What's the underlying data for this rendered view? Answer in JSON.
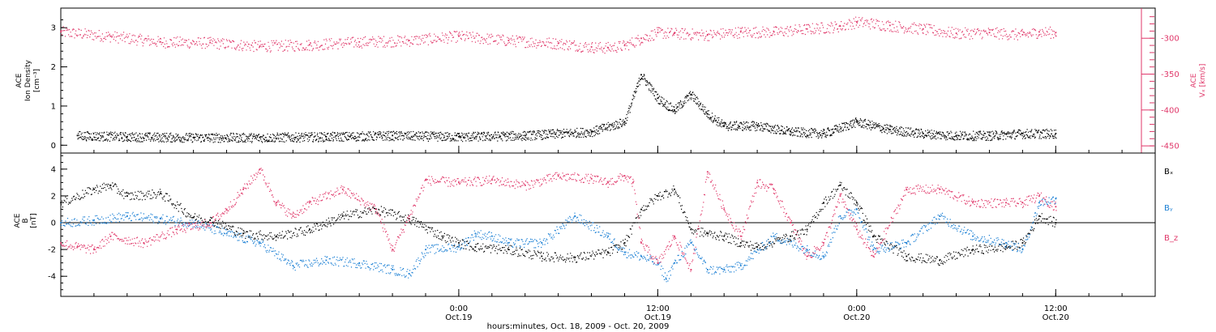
{
  "chart_data": [
    {
      "type": "scatter",
      "ylabel": "ACE Ion Density [cm⁻³]",
      "ylabel_lines": [
        "ACE",
        "Ion Density",
        "[cm⁻³]"
      ],
      "yticks": [
        "0",
        "1",
        "2",
        "3"
      ],
      "ylim": [
        -0.2,
        3.5
      ],
      "y2label": "ACE Vₓ [km/s]",
      "y2label_lines": [
        "ACE",
        "Vₓ [km/s]"
      ],
      "y2ticks": [
        "-300",
        "-350",
        "-400",
        "-450"
      ],
      "y2lim": [
        -460,
        -258
      ],
      "series": [
        {
          "color": "#000000",
          "axis": "left",
          "x": [
            -23,
            -20,
            -16,
            -12,
            -8,
            -4,
            0,
            4,
            8,
            10,
            11,
            12,
            13,
            14,
            15,
            16,
            18,
            20,
            22,
            24,
            26,
            28,
            30,
            32,
            34,
            36
          ],
          "y": [
            0.25,
            0.22,
            0.2,
            0.2,
            0.22,
            0.25,
            0.22,
            0.25,
            0.35,
            0.6,
            1.8,
            1.2,
            0.9,
            1.3,
            0.8,
            0.5,
            0.5,
            0.35,
            0.3,
            0.6,
            0.4,
            0.3,
            0.25,
            0.25,
            0.3,
            0.3
          ]
        },
        {
          "color": "#e0386a",
          "axis": "right",
          "x": [
            -24,
            -21,
            -18,
            -15,
            -12,
            -9,
            -6,
            -3,
            0,
            3,
            6,
            8,
            9,
            10,
            11,
            12,
            13,
            15,
            17,
            19,
            21,
            23,
            24,
            26,
            28,
            30,
            32,
            34,
            35,
            36
          ],
          "y": [
            -291,
            -297,
            -305,
            -306,
            -311,
            -309,
            -305,
            -303,
            -297,
            -303,
            -307,
            -312,
            -313,
            -310,
            -300,
            -292,
            -293,
            -295,
            -291,
            -291,
            -287,
            -283,
            -277,
            -282,
            -287,
            -293,
            -292,
            -295,
            -291,
            -292
          ]
        }
      ]
    },
    {
      "type": "scatter",
      "ylabel": "ACE B [nT]",
      "ylabel_lines": [
        "ACE",
        "B",
        "[nT]"
      ],
      "yticks": [
        "4",
        "2",
        "0",
        "-2",
        "-4"
      ],
      "ylim": [
        -5.5,
        5.2
      ],
      "xlabel": "hours:minutes, Oct. 18, 2009 - Oct. 20, 2009",
      "xticks": [
        {
          "x": 0,
          "time": "0:00",
          "date": "Oct.19"
        },
        {
          "x": 12,
          "time": "12:00",
          "date": "Oct.19"
        },
        {
          "x": 24,
          "time": "0:00",
          "date": "Oct.20"
        },
        {
          "x": 36,
          "time": "12:00",
          "date": "Oct.20"
        }
      ],
      "xlim": [
        -24,
        42
      ],
      "legend": [
        "Bₓ",
        "Bᵧ",
        "B_z"
      ],
      "legend_placement": "right",
      "series": [
        {
          "name": "Bₓ",
          "color": "#000000",
          "x": [
            -24,
            -22,
            -21,
            -20,
            -18,
            -16,
            -15,
            -13,
            -11,
            -9,
            -7,
            -5,
            -3,
            -1,
            0,
            1,
            3,
            5,
            7,
            9,
            10,
            11,
            12,
            13,
            14,
            15,
            16,
            17,
            18,
            20,
            21,
            22,
            23,
            24,
            25,
            27,
            29,
            31,
            33,
            34,
            35,
            36
          ],
          "y": [
            1.5,
            2.5,
            2.8,
            2.0,
            2.2,
            0.4,
            0.2,
            -0.8,
            -1.0,
            -0.5,
            0.5,
            1.0,
            0.3,
            -1.0,
            -1.5,
            -1.8,
            -2.0,
            -2.5,
            -2.6,
            -2.2,
            -1.5,
            1.0,
            2.0,
            2.5,
            -0.5,
            -0.8,
            -1.0,
            -1.5,
            -1.8,
            -1.0,
            -0.5,
            1.5,
            2.8,
            1.5,
            -1.0,
            -2.5,
            -2.8,
            -2.0,
            -1.8,
            -1.5,
            0.5,
            0.0
          ]
        },
        {
          "name": "Bᵧ",
          "color": "#1a7fd4",
          "x": [
            -24,
            -22,
            -20,
            -18,
            -16,
            -14,
            -12,
            -10,
            -8,
            -6,
            -4,
            -3,
            -2,
            0,
            1,
            2,
            3,
            5,
            7,
            9,
            10,
            11,
            12,
            12.5,
            13,
            14,
            15,
            16,
            17,
            19,
            21,
            22,
            23,
            24,
            25,
            27,
            29,
            31,
            33,
            34,
            35,
            36
          ],
          "y": [
            0.0,
            0.2,
            0.5,
            0.3,
            0.0,
            -0.8,
            -1.5,
            -3.2,
            -2.8,
            -3.0,
            -3.5,
            -3.8,
            -2.0,
            -1.8,
            -0.8,
            -1.0,
            -1.5,
            -1.5,
            0.5,
            -1.0,
            -2.2,
            -2.5,
            -3.0,
            -4.2,
            -3.0,
            -1.5,
            -3.5,
            -3.5,
            -3.2,
            -1.0,
            -2.0,
            -2.5,
            0.5,
            1.0,
            -2.0,
            -1.5,
            0.5,
            -1.0,
            -1.5,
            -2.0,
            1.5,
            1.8
          ]
        },
        {
          "name": "B_z",
          "color": "#e0386a",
          "x": [
            -24,
            -23,
            -22,
            -21,
            -19,
            -17,
            -15,
            -14,
            -13,
            -12,
            -11,
            -10,
            -9,
            -7,
            -5,
            -4,
            -3,
            -2,
            0,
            2,
            4,
            6,
            8,
            9,
            10,
            10.5,
            11,
            12,
            13,
            14,
            15,
            16,
            17,
            18,
            19,
            20,
            21,
            22,
            23,
            24,
            25,
            27,
            29,
            31,
            33,
            34,
            35,
            36
          ],
          "y": [
            -1.5,
            -1.8,
            -2.0,
            -1.0,
            -1.5,
            -0.5,
            0.0,
            1.0,
            2.5,
            4.0,
            1.5,
            0.5,
            1.5,
            2.5,
            1.0,
            -2.0,
            0.5,
            3.2,
            3.0,
            3.2,
            2.8,
            3.5,
            3.3,
            3.0,
            3.5,
            3.0,
            -1.5,
            -3.0,
            -1.0,
            -3.5,
            3.8,
            1.0,
            -1.0,
            3.0,
            2.5,
            0.0,
            -2.5,
            -1.5,
            2.0,
            -0.5,
            -2.5,
            2.5,
            2.5,
            1.5,
            1.5,
            1.5,
            2.0,
            1.2
          ]
        }
      ]
    }
  ]
}
